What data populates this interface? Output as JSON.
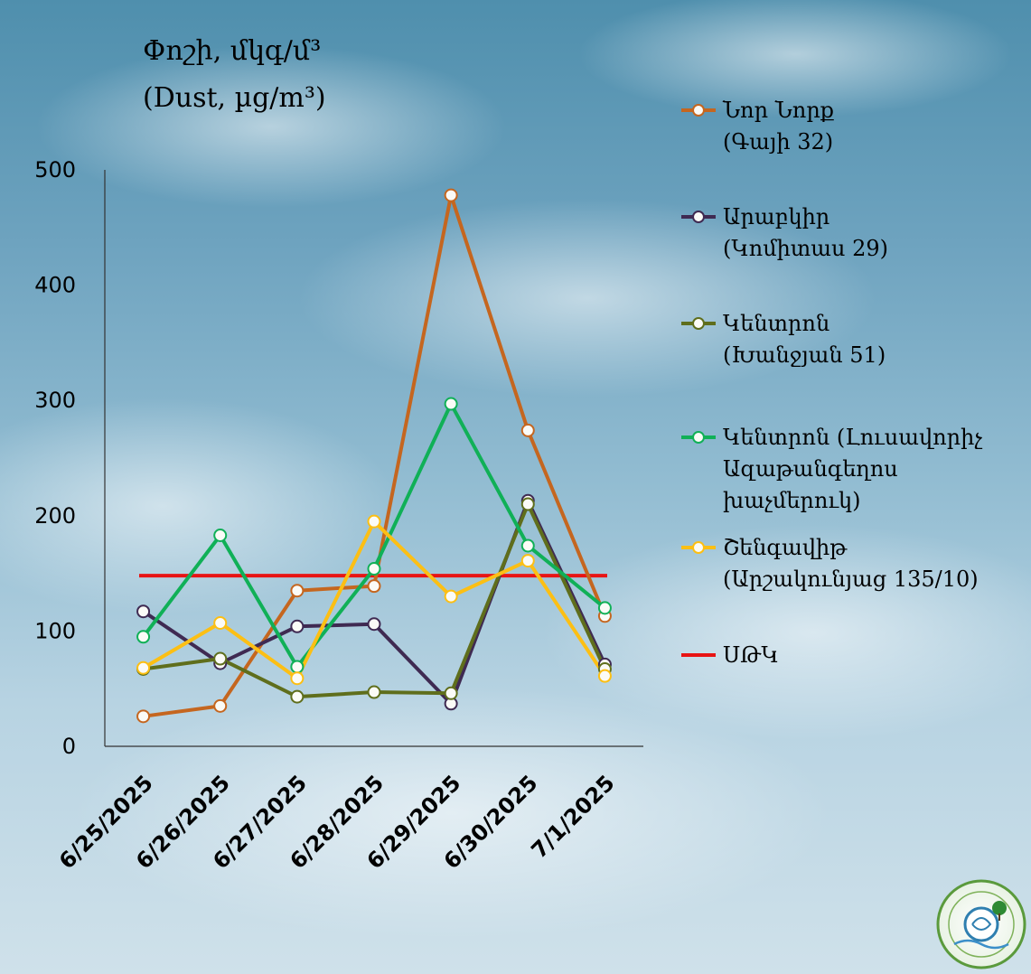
{
  "chart_data": {
    "type": "line",
    "title_line1": "Փոշի, մկգ/մ³",
    "title_line2": "(Dust, µg/m³)",
    "x": [
      "6/25/2025",
      "6/26/2025",
      "6/27/2025",
      "6/28/2025",
      "6/29/2025",
      "6/30/2025",
      "7/1/2025"
    ],
    "ylim": [
      0,
      500
    ],
    "yticks": [
      0,
      100,
      200,
      300,
      400,
      500
    ],
    "grid": false,
    "legend_position": "right",
    "series": [
      {
        "name_lines": [
          "Նոր Նորք",
          "(Գայի 32)"
        ],
        "color": "#c5661f",
        "values": [
          26,
          35,
          135,
          139,
          478,
          274,
          113
        ]
      },
      {
        "name_lines": [
          "Արաբկիր",
          "(Կոմիտաս 29)"
        ],
        "color": "#3f2a52",
        "values": [
          117,
          72,
          104,
          106,
          37,
          213,
          71
        ]
      },
      {
        "name_lines": [
          "Կենտրոն",
          "(Խանջյան 51)"
        ],
        "color": "#5f6e1c",
        "values": [
          67,
          76,
          43,
          47,
          46,
          210,
          67
        ]
      },
      {
        "name_lines": [
          "Կենտրոն (Լուսավորիչ",
          "Ազաթանգեղոս",
          "խաչմերուկ)"
        ],
        "color": "#10b057",
        "values": [
          95,
          183,
          69,
          154,
          297,
          174,
          120
        ]
      },
      {
        "name_lines": [
          "Շենգավիթ",
          "(Արշակունյաց 135/10)"
        ],
        "color": "#fcbf14",
        "values": [
          68,
          107,
          59,
          195,
          130,
          161,
          61
        ]
      }
    ],
    "limit": {
      "name": "ՍԹԿ",
      "value": 148,
      "color": "#e81414"
    }
  }
}
